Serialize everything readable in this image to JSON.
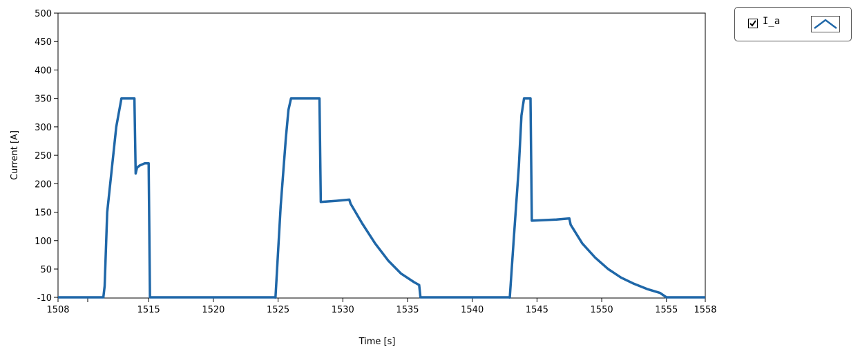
{
  "chart_data": {
    "type": "line",
    "xlabel": "Time [s]",
    "ylabel": "Current [A]",
    "xlim": [
      1508,
      1558
    ],
    "ylim": [
      -10,
      500
    ],
    "xticks": [
      1508,
      1515,
      1520,
      1525,
      1530,
      1535,
      1540,
      1545,
      1550,
      1555,
      1558
    ],
    "yticks": [
      -10,
      50,
      100,
      150,
      200,
      250,
      300,
      350,
      400,
      450,
      500
    ],
    "ytick_labels": [
      "-10",
      "50",
      "100",
      "150",
      "200",
      "250",
      "300",
      "350",
      "400",
      "450",
      "500"
    ],
    "grid": false,
    "legend_position": "top-right",
    "series": [
      {
        "name": "I_a",
        "color": "#1f67a8",
        "x": [
          1508,
          1511.5,
          1511.6,
          1511.8,
          1512.5,
          1512.9,
          1513.5,
          1513.9,
          1514,
          1514.1,
          1514.3,
          1514.7,
          1515,
          1515.1,
          1524.7,
          1524.8,
          1525.2,
          1525.6,
          1525.8,
          1526,
          1528.2,
          1528.3,
          1529.5,
          1530.5,
          1530.6,
          1531.5,
          1532.5,
          1533.5,
          1534.5,
          1535.5,
          1535.9,
          1536,
          1542.8,
          1542.9,
          1543.2,
          1543.6,
          1543.8,
          1544,
          1544.5,
          1544.6,
          1546.5,
          1547.5,
          1547.6,
          1548.5,
          1549.5,
          1550.5,
          1551.5,
          1552.5,
          1553.5,
          1554.5,
          1555,
          1558
        ],
        "y": [
          -10,
          -10,
          20,
          150,
          300,
          350,
          350,
          350,
          218,
          228,
          232,
          236,
          236,
          -10,
          -10,
          0,
          160,
          280,
          330,
          350,
          350,
          168,
          170,
          172,
          165,
          130,
          95,
          65,
          42,
          27,
          22,
          -10,
          -10,
          0,
          100,
          230,
          320,
          350,
          350,
          135,
          137,
          139,
          128,
          95,
          70,
          50,
          35,
          24,
          15,
          8,
          -10,
          -10
        ]
      }
    ]
  },
  "legend": {
    "series_label": "I_a",
    "checked": true
  }
}
